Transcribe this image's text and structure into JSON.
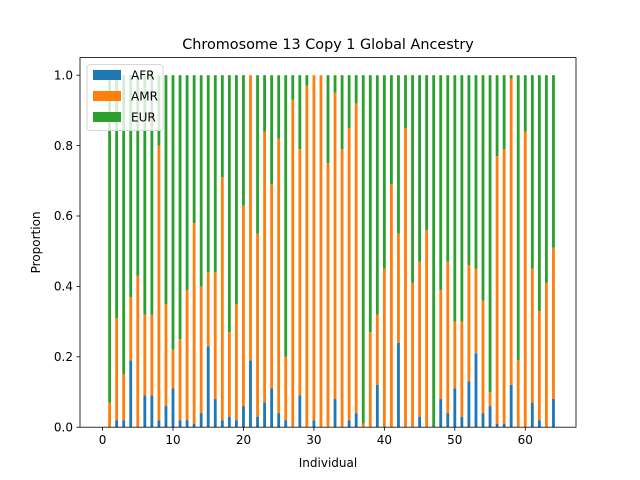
{
  "chart_data": {
    "type": "bar",
    "stacked": true,
    "title": "Chromosome 13 Copy 1 Global Ancestry",
    "xlabel": "Individual",
    "ylabel": "Proportion",
    "xlim": [
      -3.2,
      67.2
    ],
    "ylim": [
      0,
      1.05
    ],
    "xticks": [
      0,
      10,
      20,
      30,
      40,
      50,
      60
    ],
    "yticks": [
      "0.0",
      "0.2",
      "0.4",
      "0.6",
      "0.8",
      "1.0"
    ],
    "legend_position": "top-left",
    "x": [
      1,
      2,
      3,
      4,
      5,
      6,
      7,
      8,
      9,
      10,
      11,
      12,
      13,
      14,
      15,
      16,
      17,
      18,
      19,
      20,
      21,
      22,
      23,
      24,
      25,
      26,
      27,
      28,
      29,
      30,
      31,
      32,
      33,
      34,
      35,
      36,
      37,
      38,
      39,
      40,
      41,
      42,
      43,
      44,
      45,
      46,
      47,
      48,
      49,
      50,
      51,
      52,
      53,
      54,
      55,
      56,
      57,
      58,
      59,
      60,
      61,
      62,
      63,
      64
    ],
    "series": [
      {
        "name": "AFR",
        "color": "#1f77b4",
        "values": [
          0.0,
          0.02,
          0.02,
          0.19,
          0.0,
          0.09,
          0.09,
          0.02,
          0.06,
          0.11,
          0.02,
          0.02,
          0.01,
          0.04,
          0.23,
          0.08,
          0.02,
          0.03,
          0.02,
          0.06,
          0.19,
          0.03,
          0.07,
          0.11,
          0.04,
          0.02,
          0.0,
          0.09,
          0.0,
          0.02,
          0.0,
          0.0,
          0.08,
          0.0,
          0.02,
          0.04,
          0.0,
          0.0,
          0.12,
          0.0,
          0.0,
          0.24,
          0.0,
          0.0,
          0.03,
          0.0,
          0.0,
          0.08,
          0.04,
          0.11,
          0.03,
          0.13,
          0.21,
          0.04,
          0.06,
          0.01,
          0.01,
          0.12,
          0.0,
          0.0,
          0.07,
          0.02,
          0.0,
          0.08
        ]
      },
      {
        "name": "AMR",
        "color": "#ff7f0e",
        "values": [
          0.07,
          0.29,
          0.13,
          0.18,
          0.43,
          0.23,
          0.23,
          0.78,
          0.29,
          0.11,
          0.23,
          0.37,
          0.57,
          0.36,
          0.21,
          0.36,
          0.69,
          0.24,
          0.33,
          0.57,
          0.81,
          0.52,
          0.77,
          0.58,
          0.78,
          0.18,
          0.93,
          0.7,
          0.97,
          0.98,
          1.0,
          0.75,
          0.87,
          0.79,
          0.83,
          0.88,
          0.01,
          0.27,
          0.2,
          0.45,
          0.69,
          0.31,
          0.85,
          0.41,
          0.44,
          0.56,
          0.0,
          0.31,
          0.43,
          0.19,
          0.27,
          0.33,
          0.24,
          0.32,
          0.04,
          0.76,
          0.78,
          0.87,
          0.19,
          0.84,
          0.38,
          0.31,
          0.41,
          0.43
        ]
      },
      {
        "name": "EUR",
        "color": "#2ca02c",
        "values": [
          0.93,
          0.69,
          0.85,
          0.63,
          0.57,
          0.68,
          0.68,
          0.2,
          0.65,
          0.78,
          0.75,
          0.61,
          0.42,
          0.6,
          0.56,
          0.56,
          0.29,
          0.73,
          0.65,
          0.37,
          0.0,
          0.45,
          0.16,
          0.31,
          0.18,
          0.8,
          0.07,
          0.21,
          0.03,
          0.0,
          0.0,
          0.25,
          0.05,
          0.21,
          0.15,
          0.08,
          0.99,
          0.73,
          0.68,
          0.55,
          0.31,
          0.45,
          0.15,
          0.59,
          0.53,
          0.44,
          1.0,
          0.61,
          0.53,
          0.7,
          0.7,
          0.54,
          0.55,
          0.64,
          0.9,
          0.23,
          0.21,
          0.01,
          0.81,
          0.16,
          0.55,
          0.67,
          0.59,
          0.49
        ]
      }
    ]
  }
}
